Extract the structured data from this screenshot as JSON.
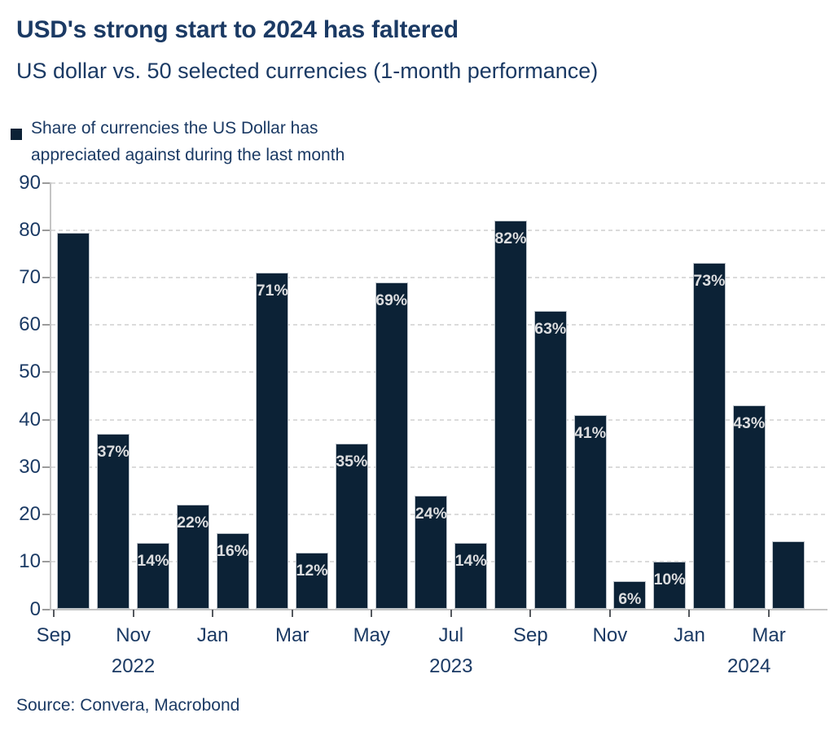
{
  "header": {
    "title": "USD's strong start to 2024 has faltered",
    "subtitle": "US dollar vs. 50 selected currencies (1-month performance)"
  },
  "legend": {
    "label_line1": "Share of currencies the US Dollar has",
    "label_line2": "appreciated against during the last month"
  },
  "footer": {
    "source": "Source: Convera, Macrobond"
  },
  "colors": {
    "navy_text": "#1b3a64",
    "bar_fill": "#0c2236",
    "bar_border": "#bcc3ca",
    "bar_label": "#dcdddf",
    "gridline": "#dbdbdb",
    "axis_line": "#c4c4c4",
    "y_tick": "#9b9b9b",
    "x_tick": "#55595e"
  },
  "chart_data": {
    "type": "bar",
    "title": "USD's strong start to 2024 has faltered",
    "subtitle": "US dollar vs. 50 selected currencies (1-month performance)",
    "series_name": "Share of currencies the US Dollar has appreciated against during the last month",
    "x": [
      "Sep 2022",
      "Oct 2022",
      "Nov 2022",
      "Dec 2022",
      "Jan 2023",
      "Feb 2023",
      "Mar 2023",
      "Apr 2023",
      "May 2023",
      "Jun 2023",
      "Jul 2023",
      "Aug 2023",
      "Sep 2023",
      "Oct 2023",
      "Nov 2023",
      "Dec 2023",
      "Jan 2024",
      "Feb 2024",
      "Mar 2024"
    ],
    "values": [
      79.5,
      37,
      14,
      22,
      16,
      71,
      12,
      35,
      69,
      24,
      14,
      82,
      63,
      41,
      6,
      10,
      73,
      43,
      14.3
    ],
    "bar_labels": [
      "",
      "37%",
      "14%",
      "22%",
      "16%",
      "71%",
      "12%",
      "35%",
      "69%",
      "24%",
      "14%",
      "82%",
      "63%",
      "41%",
      "6%",
      "10%",
      "73%",
      "43%",
      ""
    ],
    "ylabel": "",
    "xlabel": "",
    "ylim": [
      0,
      90
    ],
    "y_ticks": [
      0,
      10,
      20,
      30,
      40,
      50,
      60,
      70,
      80,
      90
    ],
    "x_tick_labels": [
      "Sep",
      "Nov",
      "Jan",
      "Mar",
      "May",
      "Jul",
      "Sep",
      "Nov",
      "Jan",
      "Mar"
    ],
    "x_tick_month_indexes": [
      0,
      2,
      4,
      6,
      8,
      10,
      12,
      14,
      16,
      18
    ],
    "year_labels": [
      {
        "text": "2022",
        "start_month_index": 0,
        "end_month_index": 4
      },
      {
        "text": "2023",
        "start_month_index": 4,
        "end_month_index": 16
      },
      {
        "text": "2024",
        "start_month_index": 16,
        "end_month_index": 19
      }
    ],
    "grid": "horizontal-dashed",
    "legend_position": "top-left"
  }
}
